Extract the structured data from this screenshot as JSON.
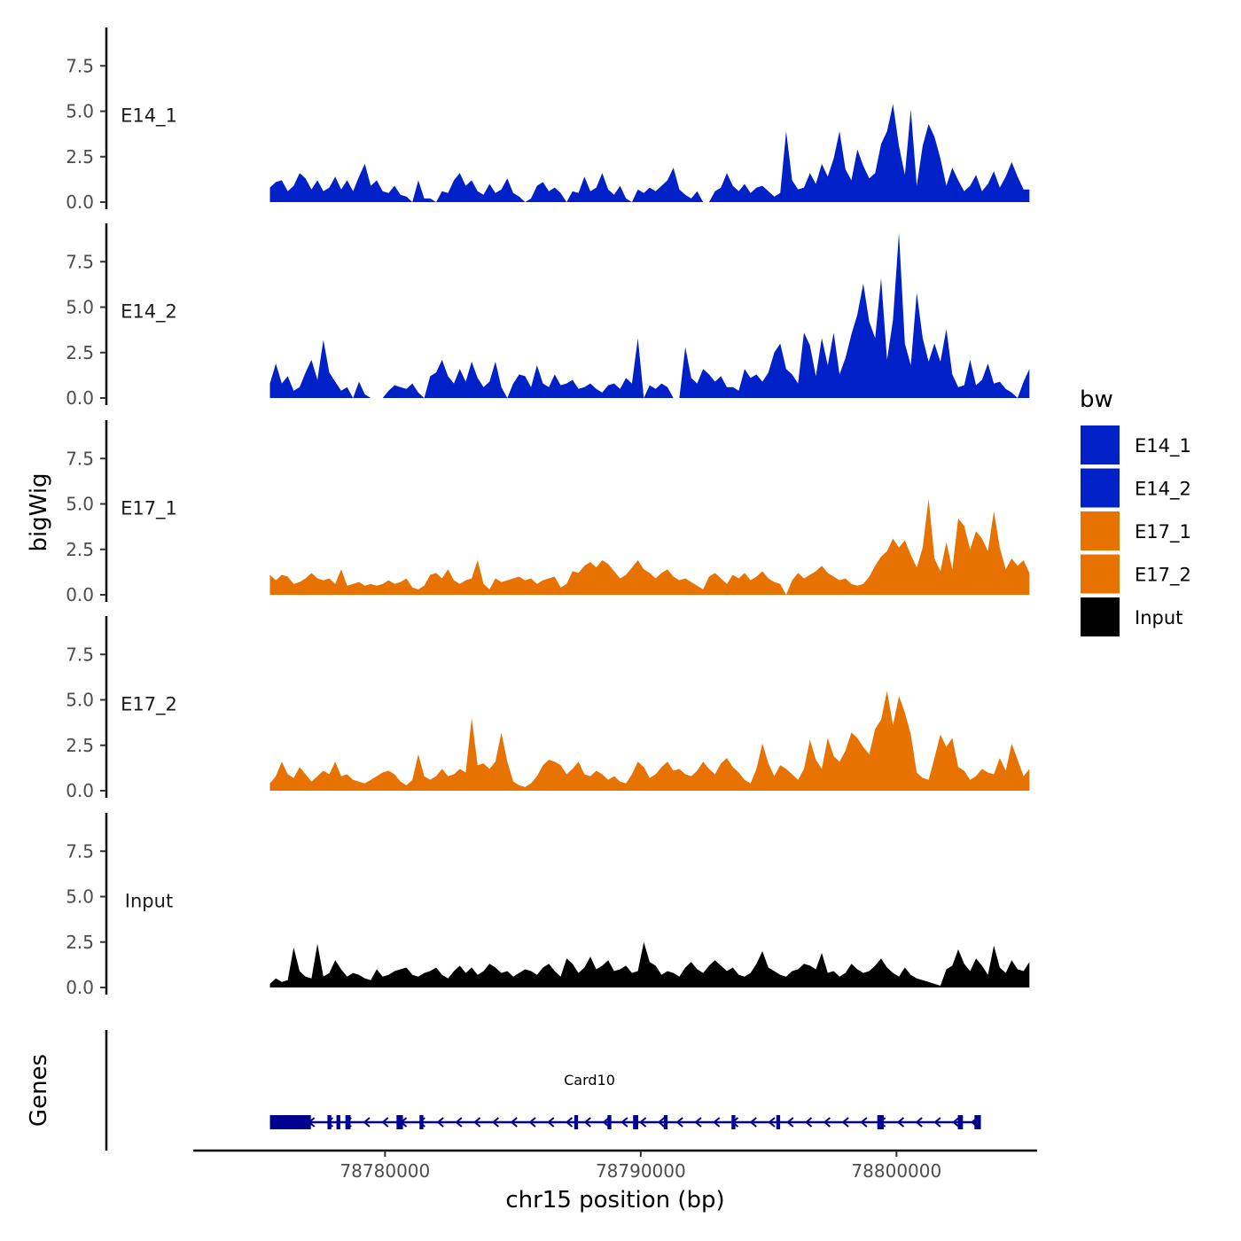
{
  "chart_data": {
    "type": "area",
    "ylabel": "bigWig",
    "genes_label": "Genes",
    "xlabel": "chr15 position (bp)",
    "xlim": [
      78772500,
      78805500
    ],
    "ylim": [
      0,
      9.6
    ],
    "x_ticks": [
      78780000,
      78790000,
      78800000
    ],
    "x_tick_labels": [
      "78780000",
      "78790000",
      "78800000"
    ],
    "y_ticks": [
      0,
      2.5,
      5,
      7.5
    ],
    "y_tick_labels": [
      "0.0",
      "2.5",
      "5.0",
      "7.5"
    ],
    "legend": {
      "title": "bw",
      "entries": [
        {
          "label": "E14_1",
          "color": "#0020c8"
        },
        {
          "label": "E14_2",
          "color": "#0020c8"
        },
        {
          "label": "E17_1",
          "color": "#e87200"
        },
        {
          "label": "E17_2",
          "color": "#e87200"
        },
        {
          "label": "Input",
          "color": "#000000"
        }
      ]
    },
    "series": [
      {
        "name": "E14_1",
        "color": "#0020c8",
        "x_start": 78775500,
        "x_end": 78805200,
        "values": [
          0.8,
          1.1,
          1.2,
          0.6,
          0.9,
          1.6,
          1.3,
          0.7,
          1.2,
          0.6,
          0.8,
          1.4,
          0.7,
          1.2,
          0.6,
          1.4,
          2.1,
          0.9,
          1.2,
          0.6,
          0.5,
          0.9,
          0.4,
          0.3,
          0,
          1.2,
          0.2,
          0.2,
          0,
          0.6,
          0.5,
          1.2,
          1.6,
          0.9,
          1.2,
          0.6,
          0.4,
          1.0,
          0.5,
          0.7,
          1.3,
          0.5,
          0.3,
          0,
          0.2,
          0.9,
          1.1,
          0.6,
          0.8,
          0.5,
          0,
          0.6,
          0.5,
          1.4,
          0.6,
          0.8,
          1.6,
          0.7,
          0.4,
          0.9,
          0.2,
          0,
          0.7,
          0.5,
          0.8,
          0.6,
          0.9,
          1.2,
          1.9,
          0.7,
          0.4,
          0.2,
          0.6,
          0,
          0,
          0.6,
          0.8,
          1.6,
          0.9,
          0.6,
          1.0,
          0.5,
          0.8,
          0.9,
          0.6,
          0.3,
          0.5,
          3.9,
          1.2,
          0.7,
          0.8,
          1.6,
          1.0,
          2.1,
          1.4,
          2.4,
          3.9,
          1.8,
          1.2,
          2.9,
          2.0,
          1.3,
          1.6,
          3.2,
          3.9,
          5.4,
          3.1,
          1.5,
          5.1,
          0.9,
          3.1,
          4.3,
          3.6,
          2.4,
          0.9,
          1.9,
          1.2,
          0.6,
          0.9,
          1.5,
          0.6,
          1.0,
          1.7,
          0.8,
          1.4,
          2.2,
          1.4,
          0.7,
          0.7
        ]
      },
      {
        "name": "E14_2",
        "color": "#0020c8",
        "x_start": 78775500,
        "x_end": 78805200,
        "values": [
          0.8,
          1.9,
          0.8,
          1.2,
          0.4,
          0.6,
          1.4,
          2.1,
          1.0,
          3.2,
          1.4,
          0.9,
          0.4,
          0.6,
          0,
          0.9,
          0.2,
          0,
          0,
          0,
          0.4,
          0.7,
          0.6,
          0.5,
          0.8,
          0.3,
          0,
          1.2,
          1.4,
          2.1,
          1.2,
          0.8,
          1.6,
          0.9,
          2.0,
          1.1,
          0.6,
          0.9,
          2.0,
          0.6,
          0,
          0.8,
          1.3,
          1.2,
          0.6,
          1.8,
          0.8,
          0.6,
          1.3,
          0.7,
          0.8,
          1.0,
          0.5,
          0.6,
          0.8,
          0.5,
          0.3,
          0.7,
          0.8,
          0.5,
          1.1,
          0.8,
          3.3,
          0,
          0.7,
          0.5,
          0.8,
          0.6,
          0,
          0,
          2.8,
          1.1,
          0.8,
          1.6,
          1.3,
          0.9,
          1.2,
          0.6,
          0.6,
          0.4,
          1.6,
          1.1,
          1.3,
          0.9,
          1.4,
          2.5,
          3.0,
          1.6,
          1.3,
          0.8,
          3.6,
          2.9,
          1.2,
          3.3,
          1.8,
          3.6,
          1.3,
          2.2,
          3.5,
          4.6,
          6.3,
          4.2,
          3.3,
          6.6,
          2.1,
          4.3,
          9.1,
          3.0,
          1.8,
          5.8,
          3.3,
          2.0,
          3.0,
          2.0,
          3.8,
          1.3,
          0.6,
          0.7,
          2.1,
          0.7,
          1.0,
          1.9,
          0.8,
          0.9,
          0.5,
          0.3,
          0,
          0.9,
          1.6
        ]
      },
      {
        "name": "E17_1",
        "color": "#e87200",
        "x_start": 78775500,
        "x_end": 78805200,
        "values": [
          1.1,
          0.8,
          1.1,
          1.0,
          0.6,
          0.7,
          0.9,
          1.2,
          0.9,
          0.8,
          0.9,
          0.6,
          1.4,
          0.5,
          0.6,
          0.7,
          0.5,
          0.6,
          0.5,
          0.6,
          0.8,
          0.6,
          0.7,
          0.9,
          0.4,
          0.3,
          0.5,
          1.1,
          1.2,
          0.9,
          1.4,
          0.8,
          0.6,
          0.8,
          0.9,
          1.9,
          0.6,
          0.3,
          0.9,
          0.7,
          0.8,
          0.9,
          1.0,
          0.8,
          0.9,
          0.6,
          0.8,
          0.9,
          1.0,
          0.4,
          0.6,
          1.3,
          1.2,
          1.6,
          1.8,
          1.5,
          1.9,
          1.7,
          1.3,
          0.9,
          1.1,
          1.5,
          1.9,
          1.4,
          1.2,
          0.9,
          1.2,
          1.4,
          1.0,
          0.8,
          0.9,
          0.7,
          0.5,
          0.3,
          1.0,
          1.2,
          0.9,
          0.6,
          1.1,
          0.9,
          1.2,
          0.8,
          1.0,
          1.3,
          0.9,
          0.7,
          0.6,
          0,
          0.8,
          1.2,
          0.9,
          1.1,
          1.3,
          1.6,
          1.2,
          1.0,
          0.8,
          0.9,
          0.6,
          0.5,
          0.6,
          1.0,
          1.6,
          2.1,
          2.4,
          3.1,
          2.6,
          3.0,
          2.2,
          1.5,
          2.6,
          5.3,
          2.0,
          1.3,
          2.9,
          1.4,
          4.2,
          3.8,
          2.5,
          3.5,
          3.1,
          2.4,
          4.6,
          2.6,
          1.4,
          2.0,
          1.6,
          1.9,
          1.2
        ]
      },
      {
        "name": "E17_2",
        "color": "#e87200",
        "x_start": 78775500,
        "x_end": 78805200,
        "values": [
          0.4,
          0.8,
          1.6,
          0.9,
          0.7,
          1.3,
          0.9,
          0.5,
          0.8,
          1.1,
          0.9,
          1.6,
          0.8,
          0.9,
          0.6,
          0.5,
          0.4,
          0.6,
          0.8,
          1.0,
          1.1,
          0.9,
          0.5,
          0.3,
          0.6,
          2.0,
          0.8,
          0.6,
          0.8,
          1.2,
          0.8,
          0.9,
          1.2,
          1.0,
          4.0,
          1.4,
          1.5,
          1.2,
          1.6,
          3.2,
          1.6,
          0.5,
          0.3,
          0.2,
          0.4,
          0.8,
          1.4,
          1.7,
          1.6,
          1.4,
          0.9,
          1.2,
          1.6,
          0.9,
          0.8,
          1.1,
          0.9,
          0.6,
          0.8,
          0.5,
          0.4,
          0.9,
          1.6,
          1.3,
          0.7,
          0.9,
          1.3,
          1.6,
          1.1,
          1.2,
          0.9,
          0.8,
          1.1,
          1.6,
          1.2,
          0.9,
          1.5,
          1.8,
          1.3,
          1.0,
          0.6,
          0.4,
          1.2,
          2.6,
          1.5,
          0.8,
          1.4,
          1.2,
          0.9,
          0.6,
          1.2,
          2.8,
          1.7,
          1.2,
          2.9,
          1.9,
          1.6,
          2.2,
          3.2,
          2.9,
          2.4,
          2.0,
          3.4,
          3.9,
          5.5,
          3.6,
          5.2,
          4.3,
          3.1,
          1.0,
          0.7,
          0.6,
          1.8,
          3.1,
          2.4,
          2.9,
          1.3,
          1.1,
          0.6,
          0.8,
          1.2,
          1.0,
          0.9,
          1.8,
          1.1,
          2.6,
          1.7,
          0.8,
          1.2
        ]
      },
      {
        "name": "Input",
        "color": "#000000",
        "x_start": 78775500,
        "x_end": 78805200,
        "values": [
          0.2,
          0.5,
          0.3,
          0.4,
          2.2,
          0.9,
          0.6,
          0.5,
          2.4,
          0.6,
          0.8,
          1.5,
          1.0,
          0.6,
          0.8,
          0.7,
          0.5,
          0.4,
          1.0,
          0.6,
          0.7,
          0.9,
          1.0,
          1.1,
          0.7,
          0.6,
          0.8,
          0.9,
          1.1,
          0.7,
          0.5,
          0.9,
          1.2,
          0.8,
          1.1,
          0.7,
          0.9,
          1.3,
          1.1,
          0.8,
          0.9,
          0.6,
          0.8,
          1.0,
          0.9,
          0.7,
          1.1,
          1.3,
          0.9,
          0.6,
          1.6,
          1.3,
          0.8,
          1.1,
          1.7,
          1.0,
          1.2,
          1.5,
          0.9,
          1.0,
          1.2,
          0.8,
          0.9,
          2.5,
          1.4,
          1.2,
          0.7,
          0.9,
          0.8,
          0.6,
          1.1,
          1.4,
          1.0,
          0.8,
          1.2,
          1.5,
          1.2,
          0.9,
          1.1,
          0.7,
          0.6,
          0.8,
          1.3,
          2.0,
          1.1,
          0.9,
          0.7,
          0.6,
          0.9,
          1.0,
          1.3,
          1.2,
          1.0,
          1.9,
          0.8,
          0.9,
          0.6,
          0.8,
          1.3,
          1.0,
          0.8,
          0.9,
          1.2,
          1.6,
          1.1,
          0.8,
          0.6,
          1.1,
          0.7,
          0.5,
          0.4,
          0.3,
          0.2,
          0.1,
          1.0,
          1.2,
          2.1,
          1.3,
          0.9,
          1.6,
          1.2,
          0.7,
          2.3,
          1.1,
          0.8,
          1.5,
          1.0,
          0.9,
          1.4
        ]
      }
    ],
    "gene": {
      "name": "Card10",
      "start": 78775500,
      "end": 78803300,
      "exons": [
        [
          78775500,
          78777100
        ],
        [
          78777750,
          78777900
        ],
        [
          78778100,
          78778250
        ],
        [
          78778450,
          78778650
        ],
        [
          78780450,
          78780700
        ],
        [
          78781350,
          78781500
        ],
        [
          78787400,
          78787550
        ],
        [
          78788700,
          78788850
        ],
        [
          78789700,
          78789900
        ],
        [
          78790900,
          78791050
        ],
        [
          78793550,
          78793700
        ],
        [
          78795300,
          78795450
        ],
        [
          78799250,
          78799500
        ],
        [
          78802400,
          78802600
        ],
        [
          78803050,
          78803300
        ]
      ]
    }
  }
}
